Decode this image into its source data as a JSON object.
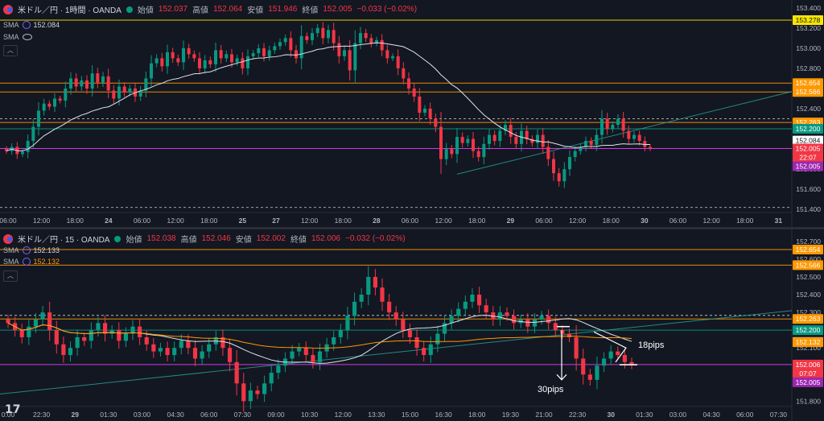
{
  "pane1": {
    "symbol": "米ドル／円 · 1時間 · OANDA",
    "ohlc": {
      "open_label": "始値",
      "open": "152.037",
      "high_label": "高値",
      "high": "152.064",
      "low_label": "安値",
      "low": "151.946",
      "close_label": "終値",
      "close": "152.005",
      "change": "−0.033 (−0.02%)"
    },
    "sma_rows": [
      {
        "label": "SMA",
        "value": "152.084"
      },
      {
        "label": "SMA",
        "value": ""
      }
    ],
    "price_axis": {
      "min": 151.37,
      "max": 153.43,
      "ticks": [
        "153.400",
        "153.200",
        "153.000",
        "152.800",
        "152.600",
        "152.400",
        "152.200",
        "152.000",
        "151.800",
        "151.600",
        "151.400"
      ]
    },
    "time_axis": [
      "06:00",
      "12:00",
      "18:00",
      "24",
      "06:00",
      "12:00",
      "18:00",
      "25",
      "27",
      "12:00",
      "18:00",
      "28",
      "06:00",
      "12:00",
      "18:00",
      "29",
      "06:00",
      "12:00",
      "18:00",
      "30",
      "06:00",
      "12:00",
      "18:00",
      "31"
    ],
    "price_labels": [
      {
        "value": "153.278",
        "color": "#f7e600"
      },
      {
        "value": "152.654",
        "color": "#ff9800"
      },
      {
        "value": "152.566",
        "color": "#ff9800"
      },
      {
        "value": "152.263",
        "color": "#ff9800"
      },
      {
        "value": "152.200",
        "color": "#089981"
      },
      {
        "value": "152.084",
        "color": "#ffffff"
      },
      {
        "value": "152.005",
        "color": "#f23645"
      },
      {
        "value": "22:07",
        "color": "#f23645"
      },
      {
        "value": "152.005",
        "color": "#9c27b0"
      }
    ]
  },
  "pane2": {
    "symbol": "米ドル／円 · 15 · OANDA",
    "ohlc": {
      "open_label": "始値",
      "open": "152.038",
      "high_label": "高値",
      "high": "152.046",
      "low_label": "安値",
      "low": "152.002",
      "close_label": "終値",
      "close": "152.006",
      "change": "−0.032 (−0.02%)"
    },
    "sma_rows": [
      {
        "label": "SMA",
        "value": "152.133"
      },
      {
        "label": "SMA",
        "value": "152.132"
      }
    ],
    "price_axis": {
      "min": 151.77,
      "max": 152.74,
      "ticks": [
        "152.700",
        "152.600",
        "152.500",
        "152.400",
        "152.300",
        "152.200",
        "152.100",
        "152.000",
        "151.900",
        "151.800"
      ]
    },
    "time_axis": [
      "0:00",
      "22:30",
      "29",
      "01:30",
      "03:00",
      "04:30",
      "06:00",
      "07:30",
      "09:00",
      "10:30",
      "12:00",
      "13:30",
      "15:00",
      "16:30",
      "18:00",
      "19:30",
      "21:00",
      "22:30",
      "30",
      "01:30",
      "03:00",
      "04:30",
      "06:00",
      "07:30"
    ],
    "price_labels": [
      {
        "value": "152.654",
        "color": "#ff9800"
      },
      {
        "value": "152.566",
        "color": "#ff9800"
      },
      {
        "value": "152.263",
        "color": "#ff9800"
      },
      {
        "value": "152.200",
        "color": "#089981"
      },
      {
        "value": "152.133",
        "color": "#ffffff"
      },
      {
        "value": "152.132",
        "color": "#ff9800"
      },
      {
        "value": "152.006",
        "color": "#f23645"
      },
      {
        "value": "07:07",
        "color": "#f23645"
      },
      {
        "value": "152.005",
        "color": "#9c27b0"
      }
    ],
    "annotations": [
      {
        "text": "18pips"
      },
      {
        "text": "30pips"
      }
    ]
  },
  "chart_data": [
    {
      "type": "candlestick",
      "title": "米ドル／円 · 1時間 · OANDA",
      "ylim": [
        151.37,
        153.43
      ],
      "horizontal_levels": [
        153.278,
        152.654,
        152.566,
        152.263,
        152.2,
        152.005
      ],
      "last_price": 152.005,
      "sma_last": 152.084,
      "close": [
        151.98,
        152.02,
        151.95,
        151.97,
        152.08,
        152.22,
        152.38,
        152.45,
        152.42,
        152.5,
        152.48,
        152.6,
        152.7,
        152.62,
        152.68,
        152.6,
        152.75,
        152.66,
        152.72,
        152.58,
        152.5,
        152.62,
        152.56,
        152.6,
        152.52,
        152.58,
        152.7,
        152.85,
        152.9,
        152.82,
        152.96,
        152.9,
        152.86,
        153.0,
        152.94,
        152.9,
        152.8,
        152.88,
        152.84,
        152.98,
        152.9,
        152.94,
        152.86,
        152.9,
        152.8,
        152.92,
        152.95,
        153.0,
        152.92,
        152.98,
        153.02,
        153.06,
        153.1,
        152.98,
        152.9,
        153.12,
        153.08,
        153.15,
        153.2,
        153.1,
        153.18,
        153.05,
        152.92,
        152.98,
        152.78,
        153.05,
        153.15,
        153.1,
        153.05,
        153.08,
        152.98,
        152.9,
        152.92,
        152.8,
        152.7,
        152.6,
        152.52,
        152.36,
        152.4,
        152.3,
        152.22,
        151.9,
        152.0,
        151.95,
        152.12,
        152.06,
        152.1,
        151.98,
        151.92,
        152.05,
        152.14,
        152.08,
        152.18,
        152.24,
        152.12,
        152.05,
        152.18,
        152.1,
        152.06,
        152.14,
        152.02,
        151.9,
        151.76,
        151.68,
        151.8,
        151.92,
        151.98,
        152.02,
        152.08,
        152.04,
        152.14,
        152.3,
        152.2,
        152.24,
        152.3,
        152.18,
        152.1,
        152.14,
        152.08,
        152.02,
        152.005
      ]
    },
    {
      "type": "candlestick",
      "title": "米ドル／円 · 15 · OANDA",
      "ylim": [
        151.77,
        152.74
      ],
      "horizontal_levels": [
        152.654,
        152.566,
        152.263,
        152.2,
        152.006
      ],
      "last_price": 152.006,
      "sma_last": [
        152.133,
        152.132
      ],
      "annotations": [
        "18pips",
        "30pips"
      ],
      "close": [
        152.24,
        152.2,
        152.16,
        152.22,
        152.26,
        152.3,
        152.2,
        152.12,
        152.06,
        152.1,
        152.16,
        152.14,
        152.2,
        152.24,
        152.18,
        152.2,
        152.14,
        152.18,
        152.22,
        152.16,
        152.12,
        152.08,
        152.1,
        152.06,
        152.1,
        152.14,
        152.1,
        152.04,
        152.08,
        152.12,
        152.16,
        152.1,
        152.02,
        151.9,
        151.8,
        151.86,
        151.84,
        151.9,
        151.96,
        152.0,
        152.04,
        152.08,
        152.1,
        152.06,
        152.02,
        152.08,
        152.12,
        152.16,
        152.2,
        152.28,
        152.36,
        152.4,
        152.5,
        152.44,
        152.36,
        152.3,
        152.26,
        152.2,
        152.16,
        152.1,
        152.06,
        152.12,
        152.18,
        152.24,
        152.28,
        152.32,
        152.36,
        152.4,
        152.34,
        152.3,
        152.26,
        152.3,
        152.28,
        152.24,
        152.26,
        152.22,
        152.26,
        152.28,
        152.24,
        152.2,
        152.18,
        152.16,
        152.04,
        151.95,
        151.92,
        152.0,
        152.04,
        152.08,
        152.06,
        152.02,
        152.006
      ]
    }
  ]
}
